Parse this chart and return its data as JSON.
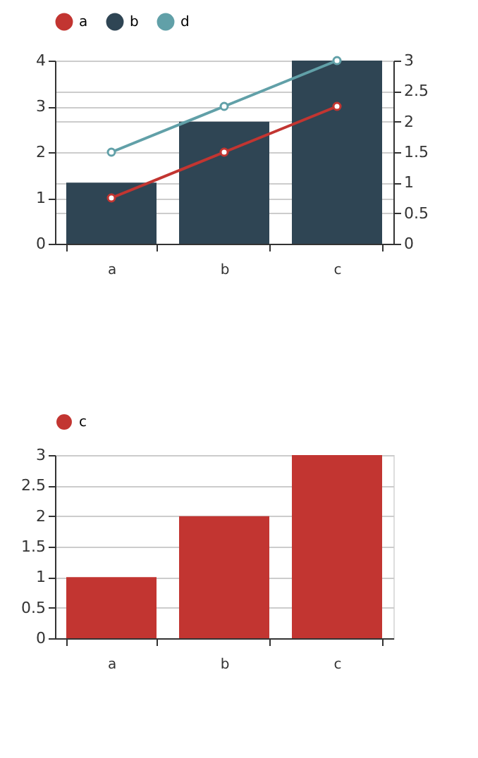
{
  "chart_data": [
    {
      "type": "bar",
      "categories": [
        "a",
        "b",
        "c"
      ],
      "series": [
        {
          "name": "a",
          "type": "line",
          "color": "#c23531",
          "values": [
            1,
            2,
            3
          ]
        },
        {
          "name": "b",
          "type": "bar",
          "axis": "y2",
          "color": "#2f4554",
          "values": [
            1,
            2,
            3
          ]
        },
        {
          "name": "d",
          "type": "line",
          "color": "#61a0a8",
          "values": [
            2,
            3,
            4
          ]
        }
      ],
      "ylim": [
        0,
        4
      ],
      "yticks": [
        0,
        1,
        2,
        3,
        4
      ],
      "y2lim": [
        0,
        3
      ],
      "y2ticks": [
        0,
        0.5,
        1,
        1.5,
        2,
        2.5,
        3
      ],
      "grid": "y",
      "legend": "top",
      "marker": "circle"
    },
    {
      "type": "bar",
      "categories": [
        "a",
        "b",
        "c"
      ],
      "series": [
        {
          "name": "c",
          "color": "#c23531",
          "values": [
            1,
            2,
            3
          ]
        }
      ],
      "ylim": [
        0,
        3
      ],
      "yticks": [
        0,
        0.5,
        1,
        1.5,
        2,
        2.5,
        3
      ],
      "grid": "y",
      "legend": "top"
    }
  ]
}
